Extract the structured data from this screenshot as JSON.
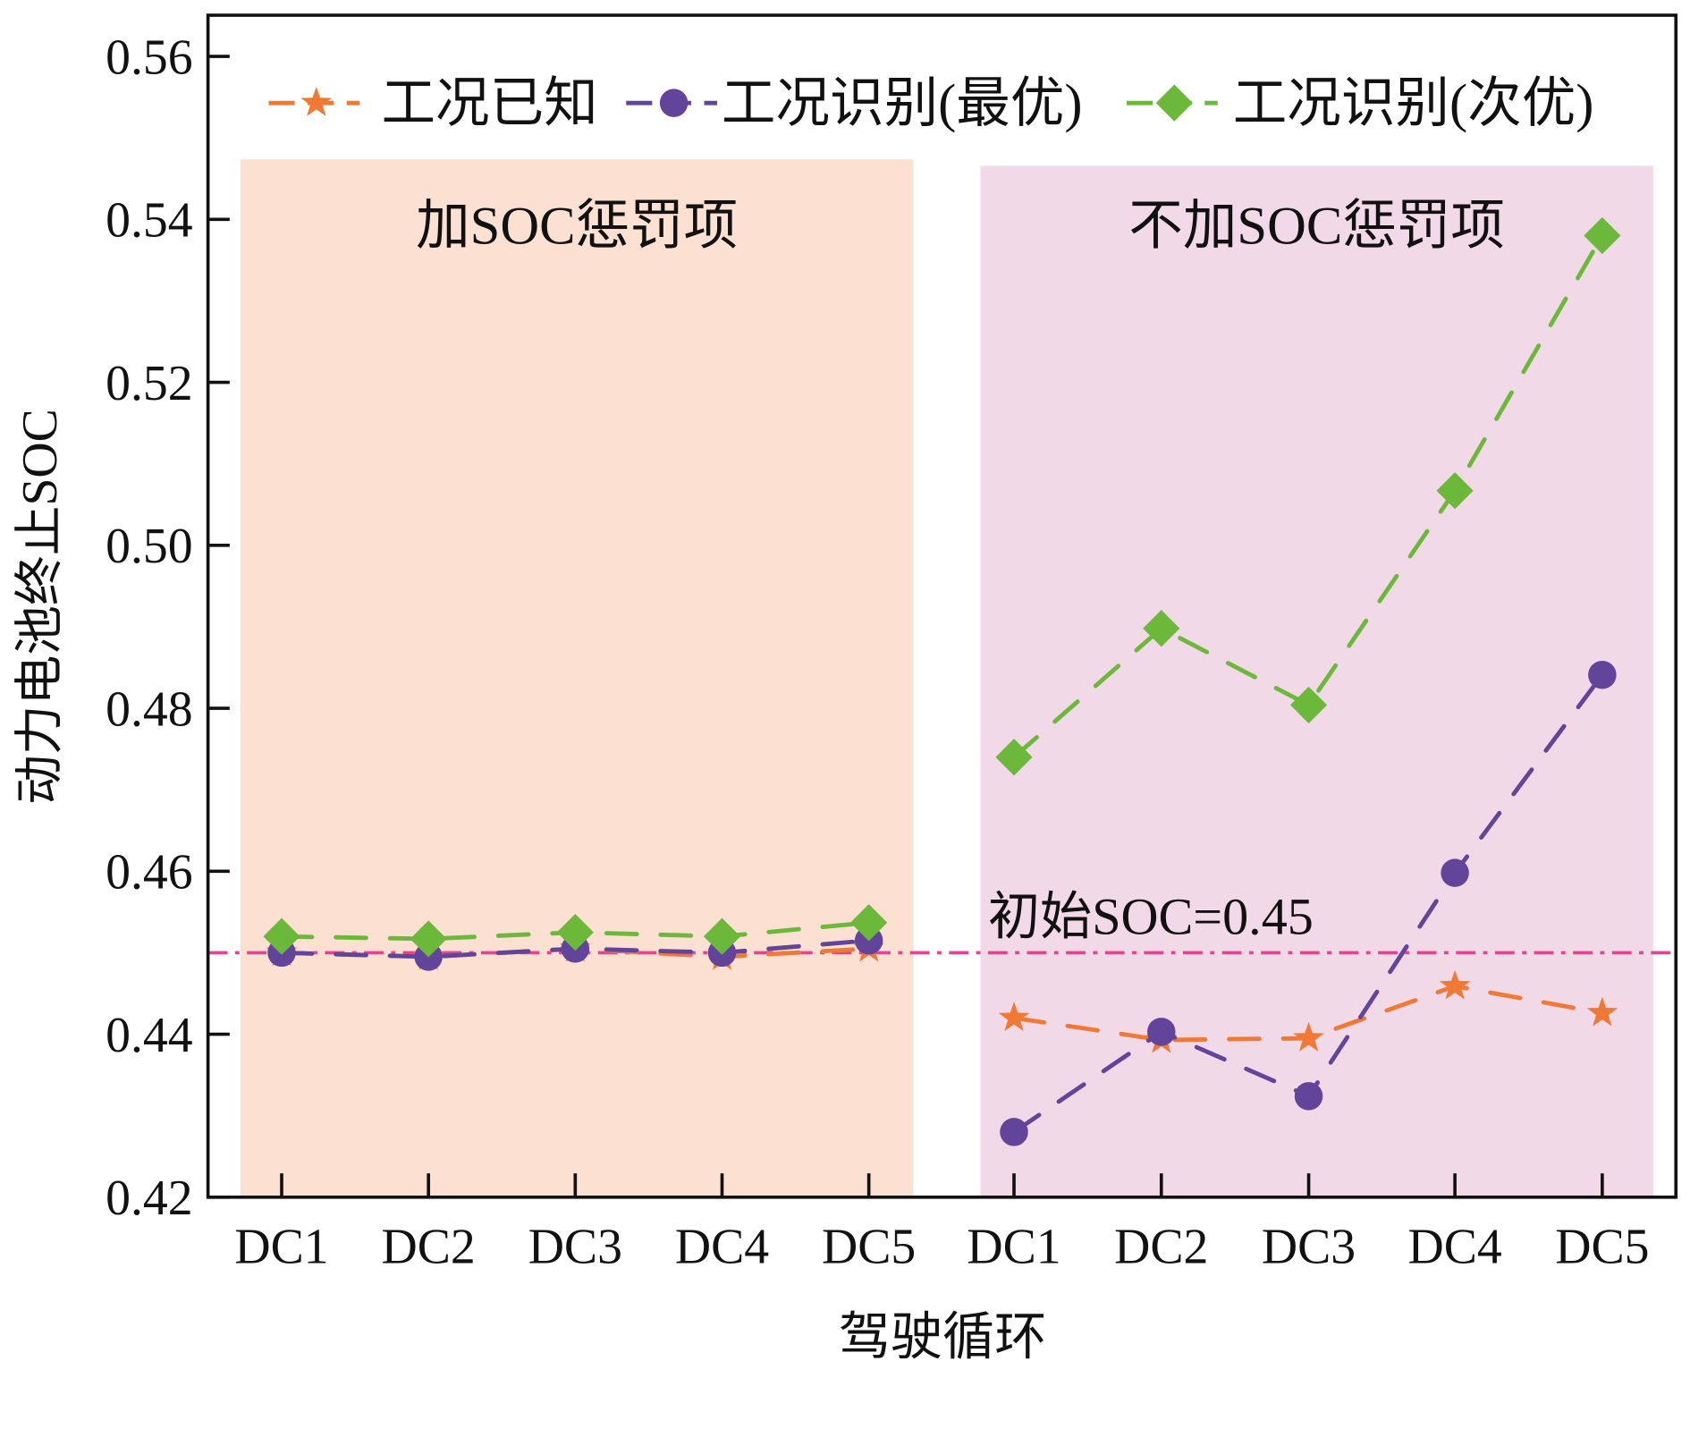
{
  "chart_data": {
    "type": "line",
    "xlabel": "驾驶循环",
    "ylabel": "动力电池终止SOC",
    "ylim": [
      0.42,
      0.56
    ],
    "yticks": [
      "0.42",
      "0.44",
      "0.46",
      "0.48",
      "0.50",
      "0.52",
      "0.54",
      "0.56"
    ],
    "categories": [
      "DC1",
      "DC2",
      "DC3",
      "DC4",
      "DC5",
      "DC1",
      "DC2",
      "DC3",
      "DC4",
      "DC5"
    ],
    "regions": [
      {
        "label": "加SOC惩罚项",
        "from_index": 0,
        "to_index": 4,
        "color": "#fce1d2"
      },
      {
        "label": "不加SOC惩罚项",
        "from_index": 5,
        "to_index": 9,
        "color": "#f2d9e8"
      }
    ],
    "reference_line": {
      "label": "初始SOC=0.45",
      "value": 0.45,
      "color": "#e0468f"
    },
    "legend_position": "top",
    "series": [
      {
        "name": "工况已知",
        "color": "#f07a35",
        "marker": "star",
        "values": [
          0.45,
          0.4495,
          0.4505,
          0.4495,
          0.4505,
          0.442,
          0.4393,
          0.4395,
          0.4459,
          0.4426
        ]
      },
      {
        "name": "工况识别(最优)",
        "color": "#62449a",
        "marker": "circle",
        "values": [
          0.45,
          0.4495,
          0.4505,
          0.45,
          0.4515,
          0.428,
          0.4403,
          0.4324,
          0.4598,
          0.4841
        ]
      },
      {
        "name": "工况识别(次优)",
        "color": "#6cb83a",
        "marker": "diamond",
        "values": [
          0.452,
          0.4517,
          0.4525,
          0.452,
          0.4537,
          0.474,
          0.4898,
          0.4804,
          0.5067,
          0.538
        ]
      }
    ]
  }
}
